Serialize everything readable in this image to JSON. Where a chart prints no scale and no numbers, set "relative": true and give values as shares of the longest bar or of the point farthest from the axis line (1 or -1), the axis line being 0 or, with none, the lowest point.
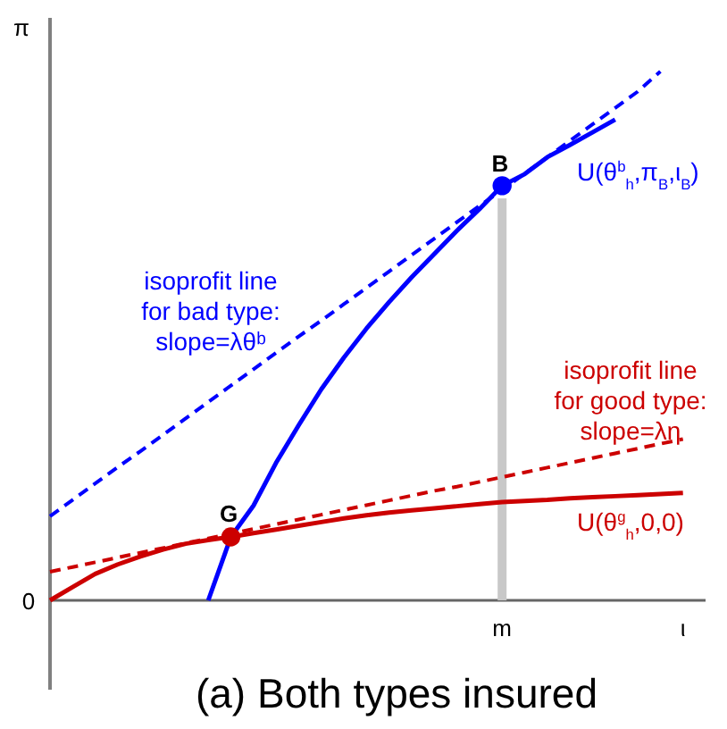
{
  "chart_data": {
    "type": "line",
    "title": "(a) Both types insured",
    "ylabel": "π",
    "relative": true,
    "categories": [
      null,
      null,
      null,
      null,
      null,
      null,
      null,
      null,
      null,
      null,
      null,
      null,
      null,
      null,
      null,
      null,
      null,
      null,
      null,
      null,
      "m",
      null,
      null,
      null,
      null,
      null,
      null,
      null,
      "ι",
      null
    ],
    "series": [
      {
        "type": "bar",
        "color": "#c8c8c8",
        "values": [
          null,
          null,
          null,
          null,
          null,
          null,
          null,
          null,
          null,
          null,
          null,
          null,
          null,
          null,
          null,
          null,
          null,
          null,
          null,
          null,
          0.76,
          null,
          null,
          null,
          null,
          null,
          null,
          null,
          null,
          null
        ]
      },
      {
        "name": "U(θ$^{b}$$_{h}$,π$_{B}$,ι$_{B}$)",
        "color": "#0000ff",
        "line_style": "solid",
        "values": [
          null,
          null,
          null,
          null,
          null,
          null,
          null,
          0,
          0.12,
          0.179,
          0.26,
          0.331,
          0.399,
          0.459,
          0.514,
          0.564,
          0.611,
          0.655,
          0.699,
          0.74,
          0.784,
          0.806,
          0.838,
          0.861,
          0.885,
          0.909,
          null,
          null,
          null,
          null
        ]
      },
      {
        "name": "isoprofit line\nfor bad type:\nslope=λθᵇ",
        "color": "#0000ff",
        "line_style": "dashed",
        "values": [
          0.159,
          0.19,
          0.221,
          0.252,
          0.282,
          0.313,
          0.344,
          0.375,
          0.406,
          0.437,
          0.468,
          0.499,
          0.529,
          0.56,
          0.591,
          0.622,
          0.653,
          0.684,
          0.715,
          0.746,
          0.776,
          0.807,
          0.838,
          0.869,
          0.9,
          0.931,
          0.962,
          1.0,
          null,
          null
        ]
      },
      {
        "name": "U(θ$^{g}$$_{h}$,0,0)",
        "color": "#cc0000",
        "line_style": "solid",
        "values": [
          0,
          0.025,
          0.05,
          0.068,
          0.083,
          0.096,
          0.107,
          0.114,
          0.12,
          0.127,
          0.134,
          0.141,
          0.148,
          0.155,
          0.161,
          0.166,
          0.17,
          0.174,
          0.178,
          0.182,
          0.186,
          0.188,
          0.19,
          0.193,
          0.195,
          0.197,
          0.199,
          0.201,
          0.203,
          null
        ]
      },
      {
        "name": "isoprofit line\nfor good type:\nslope=λη",
        "color": "#cc0000",
        "line_style": "dashed",
        "values": [
          0.054,
          0.063,
          0.072,
          0.081,
          0.09,
          0.099,
          0.108,
          0.117,
          0.126,
          0.135,
          0.144,
          0.153,
          0.162,
          0.171,
          0.18,
          0.189,
          0.198,
          0.207,
          0.215,
          0.224,
          0.233,
          0.242,
          0.251,
          0.26,
          0.269,
          0.278,
          0.287,
          0.296,
          0.305,
          null
        ]
      },
      {
        "type": "scatter",
        "marker": "circle",
        "color": "#0000ff",
        "values": [
          null,
          null,
          null,
          null,
          null,
          null,
          null,
          null,
          null,
          null,
          null,
          null,
          null,
          null,
          null,
          null,
          null,
          null,
          null,
          null,
          0.784,
          null,
          null,
          null,
          null,
          null,
          null,
          null,
          null,
          null
        ]
      },
      {
        "type": "scatter",
        "marker": "circle",
        "color": "#cc0000",
        "values": [
          null,
          null,
          null,
          null,
          null,
          null,
          null,
          null,
          0.12,
          null,
          null,
          null,
          null,
          null,
          null,
          null,
          null,
          null,
          null,
          null,
          null,
          null,
          null,
          null,
          null,
          null,
          null,
          null,
          null,
          null
        ]
      }
    ],
    "annotations": [
      "B",
      "G",
      "0"
    ]
  }
}
